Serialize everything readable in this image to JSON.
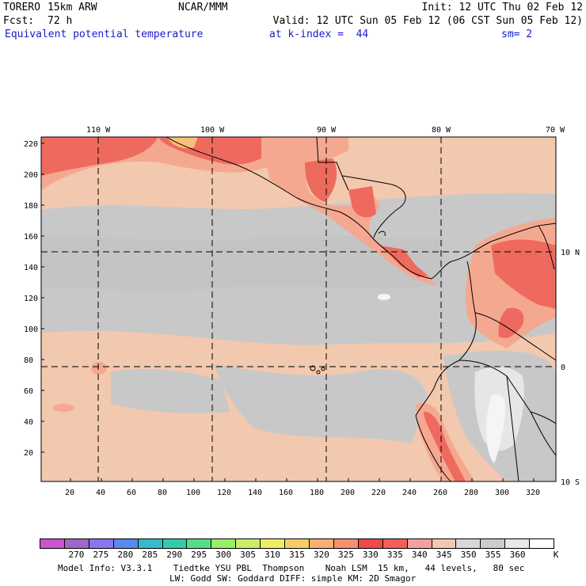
{
  "header": {
    "model": "TORERO",
    "resolution": "15km ARW",
    "org": "NCAR/MMM",
    "init": "Init: 12 UTC Thu 02 Feb 12",
    "fcst_label": "Fcst:",
    "fcst_value": "72 h",
    "valid": "Valid: 12 UTC Sun 05 Feb 12 (06 CST Sun 05 Feb 12)",
    "field": "Equivalent potential temperature",
    "level": "at k-index =  44",
    "smooth": "sm= 2"
  },
  "map": {
    "top_lon_labels": [
      "110 W",
      "100 W",
      "90 W",
      "80 W",
      "70 W"
    ],
    "right_lat_labels": [
      "10 N",
      "0",
      "10 S"
    ],
    "left_axis_labels": [
      "220",
      "200",
      "180",
      "160",
      "140",
      "120",
      "100",
      "80",
      "60",
      "40",
      "20"
    ],
    "bottom_axis_labels": [
      "20",
      "40",
      "60",
      "80",
      "100",
      "120",
      "140",
      "160",
      "180",
      "200",
      "220",
      "240",
      "260",
      "280",
      "300",
      "320"
    ],
    "colors": {
      "ocean_base": "#f2c8ae",
      "gray_band": "#c8c8c8",
      "gray_dark": "#b4b4b4",
      "warm": "#f5a890",
      "hot": "#ee6a5e",
      "hotter": "#f0504a",
      "orange": "#f8be7a",
      "white": "#f5f5f5",
      "coast": "#000000",
      "grid": "#000000"
    }
  },
  "colorbar": {
    "colors": [
      "#cc55cc",
      "#a066cc",
      "#8877ee",
      "#5a88ee",
      "#33bbcc",
      "#33ccaa",
      "#55dd88",
      "#99ee66",
      "#ccee66",
      "#eeee66",
      "#f8cc66",
      "#f8b070",
      "#f89070",
      "#f04a44",
      "#f06058",
      "#f5a0a0",
      "#f4c8b0",
      "#d8d8d8",
      "#cccccc",
      "#e8e8e8",
      "#ffffff"
    ],
    "labels": [
      "270",
      "275",
      "280",
      "285",
      "290",
      "295",
      "300",
      "305",
      "310",
      "315",
      "320",
      "325",
      "330",
      "335",
      "340",
      "345",
      "350",
      "355",
      "360"
    ],
    "unit": "K"
  },
  "footer": {
    "line1": "Model Info: V3.3.1    Tiedtke YSU PBL  Thompson    Noah LSM  15 km,   44 levels,   80 sec",
    "line2": "LW: Godd SW: Goddard DIFF: simple KM: 2D Smagor"
  }
}
